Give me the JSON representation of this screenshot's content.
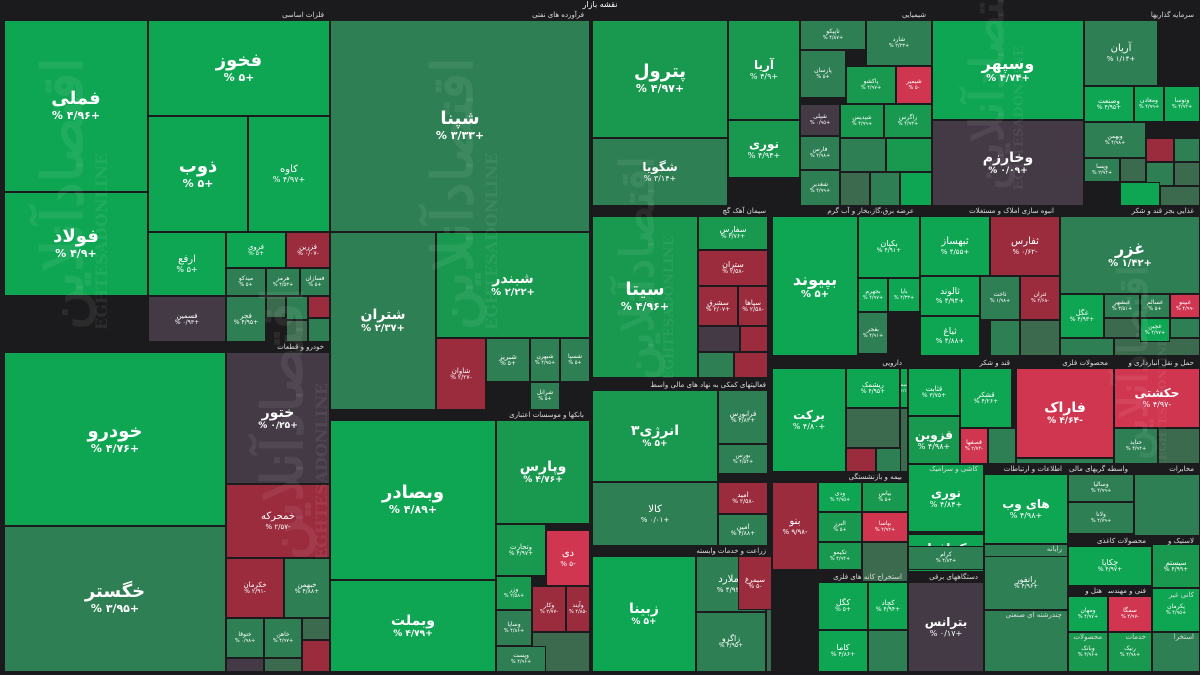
{
  "title": "نقشه بازار",
  "watermark": {
    "text": "اقتصادآنلاین",
    "subtext": "EGHTESADONLINE"
  },
  "colors": {
    "up_strong": "#0fa653",
    "up": "#18994f",
    "up_mid": "#2e7f53",
    "up_weak": "#3c6a4e",
    "neutral": "#433a45",
    "down": "#9b2c3e",
    "down_strong": "#d13650",
    "background": "#1b1b1d"
  },
  "sectors": [
    {
      "name": "فلزات اساسی"
    },
    {
      "name": "فرآورده های نفتی"
    },
    {
      "name": "شیمیایی"
    },
    {
      "name": "سرمایه گذاریها"
    },
    {
      "name": "خودرو و قطعات"
    },
    {
      "name": "سیمان آهک گچ"
    },
    {
      "name": "عرضه برق،گاز،بخار و آب گرم"
    },
    {
      "name": "انبوه سازی املاک و مستغلات"
    },
    {
      "name": "غذایی بجز قند و شکر"
    },
    {
      "name": "بانکها و موسسات اعتباری"
    },
    {
      "name": "فعالیتهای کمکی به نهاد های مالی واسط"
    },
    {
      "name": "دارویی"
    },
    {
      "name": "قند و شکر"
    },
    {
      "name": "محصولات فلزی"
    },
    {
      "name": "حمل و نقل انبارداری و"
    },
    {
      "name": "بیمه و بازنشستگی"
    },
    {
      "name": "کاشی و سرامیک"
    },
    {
      "name": "اطلاعات و ارتباطات"
    },
    {
      "name": "واسطه گریهای مالی و"
    },
    {
      "name": "مخابرات"
    },
    {
      "name": "زراعت و خدمات وابسته"
    },
    {
      "name": "استخراج کانه های فلزی"
    },
    {
      "name": "دستگاههای برقی"
    },
    {
      "name": "رایانه"
    },
    {
      "name": "محصولات کاغذی"
    },
    {
      "name": "لاستیک و"
    },
    {
      "name": "چندرشته ای صنعتی"
    },
    {
      "name": "هتل و"
    },
    {
      "name": "فنی و مهندسی"
    },
    {
      "name": "کانی غیر"
    },
    {
      "name": "محصولات"
    },
    {
      "name": "خدمات"
    },
    {
      "name": "استخرا"
    }
  ],
  "tiles": [
    {
      "name": "فملی",
      "change": "+۴/۹۶ %"
    },
    {
      "name": "فخوز",
      "change": "+۵ %"
    },
    {
      "name": "ذوب",
      "change": "+۵ %"
    },
    {
      "name": "کاوه",
      "change": "+۴/۹۷ %"
    },
    {
      "name": "فولاد",
      "change": "+۴/۹ %"
    },
    {
      "name": "ارفع",
      "change": "+۵ %"
    },
    {
      "name": "فروی",
      "change": "+۵ %"
    },
    {
      "name": "فزرین",
      "change": "-۰/۰۷ %"
    },
    {
      "name": "میدکو",
      "change": "+۵ %"
    },
    {
      "name": "هرمز",
      "change": "+۴/۵۳ %"
    },
    {
      "name": "فسازان",
      "change": "+۵ %"
    },
    {
      "name": "فسمین",
      "change": "+۰/۹۳ %"
    },
    {
      "name": "فجر",
      "change": "+۴/۹۵ %"
    },
    {
      "name": "شپنا",
      "change": "+۳/۳۳ %"
    },
    {
      "name": "شبندر",
      "change": "+۲/۲۲ %"
    },
    {
      "name": "شتران",
      "change": "+۲/۳۷ %"
    },
    {
      "name": "شاوان",
      "change": "-۲/۲۷ %"
    },
    {
      "name": "شبریز",
      "change": "+۵ %"
    },
    {
      "name": "شبهرن",
      "change": "+۴/۹۵ %"
    },
    {
      "name": "شسپا",
      "change": "+۵ %"
    },
    {
      "name": "شرانل",
      "change": "+۵ %"
    },
    {
      "name": "پترول",
      "change": "+۴/۹۷ %"
    },
    {
      "name": "آریا",
      "change": "+۴/۹ %"
    },
    {
      "name": "تاپیکو",
      "change": "+۴/۸۷ %"
    },
    {
      "name": "شارد",
      "change": "+۲/۲۳ %"
    },
    {
      "name": "پارسان",
      "change": "+۵ %"
    },
    {
      "name": "پاکشو",
      "change": "+۴/۹۷ %"
    },
    {
      "name": "شیمیر",
      "change": "-۵ %"
    },
    {
      "name": "شپلی",
      "change": "+۰/۹۵ %"
    },
    {
      "name": "شپدیس",
      "change": "+۴/۹۹ %"
    },
    {
      "name": "زاگرس",
      "change": "+۴/۹۳ %"
    },
    {
      "name": "شگویا",
      "change": "+۳/۱۴ %"
    },
    {
      "name": "نوری",
      "change": "+۴/۹۴ %"
    },
    {
      "name": "فارس",
      "change": "+۴/۹۸ %"
    },
    {
      "name": "شغدیر",
      "change": "+۴/۹۹ %"
    },
    {
      "name": "وسپهر",
      "change": "+۴/۷۴ %"
    },
    {
      "name": "آریان",
      "change": "+۱/۱۴ %"
    },
    {
      "name": "ومعادن",
      "change": "+۴/۹۹ %"
    },
    {
      "name": "وصنعت",
      "change": "+۴/۹۵ %"
    },
    {
      "name": "وتوسا",
      "change": "+۴/۹۴ %"
    },
    {
      "name": "وخارزم",
      "change": "+۰/۰۹ %"
    },
    {
      "name": "وبهمن",
      "change": "+۴/۹۸ %"
    },
    {
      "name": "وپسا",
      "change": "+۲/۹۴ %"
    },
    {
      "name": "خودرو",
      "change": "+۴/۷۶ %"
    },
    {
      "name": "ختور",
      "change": "+۰/۲۵ %"
    },
    {
      "name": "خمحرکه",
      "change": "-۲/۵۷ %"
    },
    {
      "name": "خگستر",
      "change": "+۳/۹۵ %"
    },
    {
      "name": "خکرمان",
      "change": "-۲/۹۱ %"
    },
    {
      "name": "خبهمن",
      "change": "+۴/۸۸ %"
    },
    {
      "name": "ختوقا",
      "change": "+۰/۹۸ %"
    },
    {
      "name": "خاهن",
      "change": "+۴/۹۷ %"
    },
    {
      "name": "سیتا",
      "change": "+۴/۹۶ %"
    },
    {
      "name": "ستران",
      "change": "-۲/۵۸ %"
    },
    {
      "name": "سفارس",
      "change": "+۳/۷۶ %"
    },
    {
      "name": "سشرق",
      "change": "+۲/۰۷ %"
    },
    {
      "name": "سپاها",
      "change": "-۲/۵۸ %"
    },
    {
      "name": "بپیوند",
      "change": "+۵ %"
    },
    {
      "name": "بکپان",
      "change": "+۴/۹۱ %"
    },
    {
      "name": "بجهرم",
      "change": "+۴/۹۷ %"
    },
    {
      "name": "بایا",
      "change": "+۴/۳۳ %"
    },
    {
      "name": "بفجر",
      "change": "+۴/۹۱ %"
    },
    {
      "name": "ثبهساز",
      "change": "+۴/۵۵ %"
    },
    {
      "name": "ثفارس",
      "change": "-۰/۶۲ %"
    },
    {
      "name": "ثالوند",
      "change": "+۴/۹۴ %"
    },
    {
      "name": "ثاخت",
      "change": "+۱/۹۸ %"
    },
    {
      "name": "ثتران",
      "change": "-۲/۶۸ %"
    },
    {
      "name": "ثباغ",
      "change": "+۴/۸۸ %"
    },
    {
      "name": "غزر",
      "change": "+۱/۴۲ %"
    },
    {
      "name": "غگل",
      "change": "+۴/۹۳ %"
    },
    {
      "name": "غبشهر",
      "change": "+۳/۵۱ %"
    },
    {
      "name": "غسالم",
      "change": "+۵ %"
    },
    {
      "name": "غبینو",
      "change": "-۴/۹۹ %"
    },
    {
      "name": "غچین",
      "change": "+۴/۹۷ %"
    },
    {
      "name": "وبصادر",
      "change": "+۴/۸۹ %"
    },
    {
      "name": "وپارس",
      "change": "+۴/۷۶ %"
    },
    {
      "name": "وبملت",
      "change": "+۴/۷۹ %"
    },
    {
      "name": "وتجارت",
      "change": "+۴/۹۷ %"
    },
    {
      "name": "دی",
      "change": "-۵ %"
    },
    {
      "name": "وزر",
      "change": "+۲/۵۸ %"
    },
    {
      "name": "وساپا",
      "change": "+۴/۸۶ %"
    },
    {
      "name": "وکار",
      "change": "-۲/۷۷ %"
    },
    {
      "name": "وآیند",
      "change": "-۴/۸۵ %"
    },
    {
      "name": "وپست",
      "change": "+۴/۹۶ %"
    },
    {
      "name": "انرژی۳",
      "change": "+۵ %"
    },
    {
      "name": "فرابورس",
      "change": "+۴/۸۳ %"
    },
    {
      "name": "بورس",
      "change": "+۴/۵۴ %"
    },
    {
      "name": "کالا",
      "change": "+۰/۰۱ %"
    },
    {
      "name": "امید",
      "change": "-۲/۵۸ %"
    },
    {
      "name": "امین",
      "change": "+۴/۸۸ %"
    },
    {
      "name": "برکت",
      "change": "+۴/۸۰ %"
    },
    {
      "name": "ریشمک",
      "change": "+۴/۹۵ %"
    },
    {
      "name": "دشیمی",
      "change": "+۲/۶۰ %"
    },
    {
      "name": "قثابت",
      "change": "+۳/۷۵ %"
    },
    {
      "name": "قزوین",
      "change": "+۴/۹۸ %"
    },
    {
      "name": "قشکر",
      "change": "+۴/۲۶ %"
    },
    {
      "name": "قصفها",
      "change": "-۲/۷۴ %"
    },
    {
      "name": "فاراک",
      "change": "-۴/۶۴ %"
    },
    {
      "name": "حکشتی",
      "change": "-۴/۹۷ %"
    },
    {
      "name": "حتاید",
      "change": "+۴/۹۴ %"
    },
    {
      "name": "نوری",
      "change": "+۴/۸۴ %"
    },
    {
      "name": "بنو",
      "change": "-۹/۹۸ %"
    },
    {
      "name": "ودی",
      "change": "+۴/۹۵ %"
    },
    {
      "name": "بیاس",
      "change": "+۵ %"
    },
    {
      "name": "البرز",
      "change": "+۵ %"
    },
    {
      "name": "بپاسا",
      "change": "+۴/۹۲ %"
    },
    {
      "name": "تکیمو",
      "change": "+۴/۹۴ %"
    },
    {
      "name": "پارسیان",
      "change": "+۴/۹۷ %"
    },
    {
      "name": "کحافظ",
      "change": "+۴/۹۷ %"
    },
    {
      "name": "های وب",
      "change": "+۴/۹۸ %"
    },
    {
      "name": "کرام",
      "change": "+۴/۸۳ %"
    },
    {
      "name": "اخابر",
      "change": "+۴/۲۲ %"
    },
    {
      "name": "وسالیا",
      "change": "+۴/۹۹ %"
    },
    {
      "name": "ولانا",
      "change": "+۴/۷۹ %"
    },
    {
      "name": "زبینا",
      "change": "+۵ %"
    },
    {
      "name": "زملارد",
      "change": "+۴/۹۲ %"
    },
    {
      "name": "سیمرغ",
      "change": "-۵ %"
    },
    {
      "name": "زاگرو",
      "change": "+۴/۹۵ %"
    },
    {
      "name": "کگل",
      "change": "+۵ %"
    },
    {
      "name": "کچاد",
      "change": "+۴/۹۴ %"
    },
    {
      "name": "کاما",
      "change": "+۴/۸۶ %"
    },
    {
      "name": "بترانس",
      "change": "+۰/۱۷ %"
    },
    {
      "name": "رانفور",
      "change": "+۴/۹۶ %"
    },
    {
      "name": "سیستم",
      "change": "+۴/۹۹ %"
    },
    {
      "name": "چکاپا",
      "change": "+۴/۹۷ %"
    },
    {
      "name": "پکرمان",
      "change": "+۴/۹۵ %"
    },
    {
      "name": "ومهان",
      "change": "+۴/۹۷ %"
    },
    {
      "name": "سمگا",
      "change": "-۴/۹۷ %"
    },
    {
      "name": "وبانک",
      "change": "+۴/۹۶ %"
    },
    {
      "name": "رنیک",
      "change": "+۴/۹۸ %"
    }
  ]
}
